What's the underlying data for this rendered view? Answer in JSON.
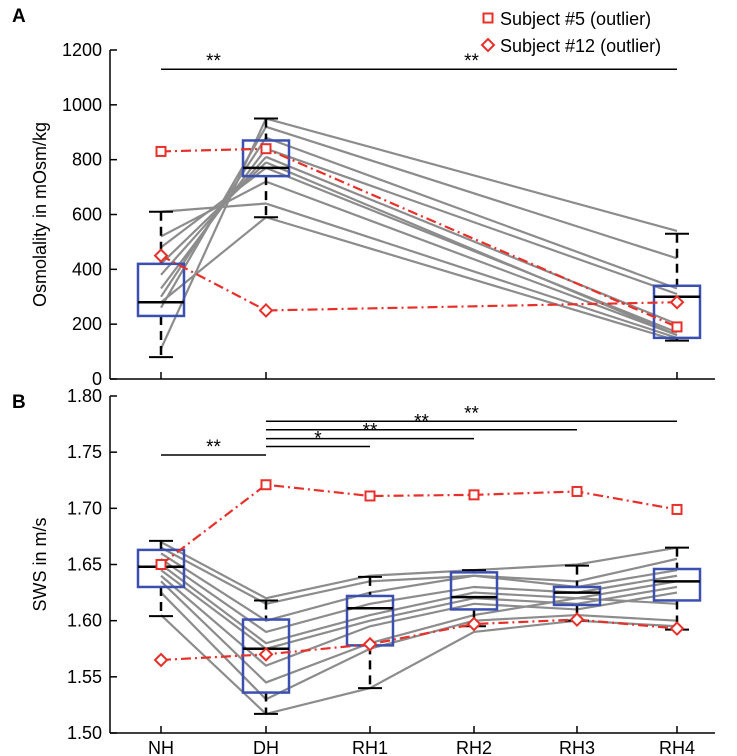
{
  "legend": {
    "position": "top-right",
    "items": [
      {
        "label": "Subject #5   (outlier)",
        "marker": "square",
        "color": "#e8302a"
      },
      {
        "label": "Subject #12 (outlier)",
        "marker": "diamond",
        "color": "#e8302a"
      }
    ]
  },
  "colors": {
    "subject_line": "#8c8c8c",
    "outlier": "#e8302a",
    "box": "#3a4fb0",
    "median": "#000000",
    "whisker": "#000000"
  },
  "chart_data": [
    {
      "panel": "A",
      "type": "line",
      "ylabel": "Osmolality in mOsm/kg",
      "ylim": [
        0,
        1200
      ],
      "yticks": [
        0,
        200,
        400,
        600,
        800,
        1000,
        1200
      ],
      "x": [
        "NH",
        "DH",
        "RH4"
      ],
      "subjects": [
        [
          110,
          950
        ],
        [
          260,
          920
        ],
        [
          300,
          880
        ],
        [
          330,
          840
        ],
        [
          380,
          810
        ],
        [
          420,
          790
        ],
        [
          480,
          770
        ],
        [
          520,
          720
        ],
        [
          610,
          640
        ],
        [
          280,
          590
        ]
      ],
      "subjects_tail": [
        [
          950,
          540
        ],
        [
          920,
          440
        ],
        [
          880,
          330
        ],
        [
          840,
          310
        ],
        [
          810,
          200
        ],
        [
          790,
          160
        ],
        [
          770,
          170
        ],
        [
          720,
          160
        ],
        [
          640,
          150
        ],
        [
          590,
          140
        ]
      ],
      "outliers": [
        {
          "name": "Subject #5",
          "marker": "square",
          "values": [
            830,
            840,
            190
          ]
        },
        {
          "name": "Subject #12",
          "marker": "diamond",
          "values": [
            450,
            250,
            280
          ]
        }
      ],
      "boxes": [
        {
          "x": "NH",
          "q1": 230,
          "median": 280,
          "q3": 420,
          "whisker_low": 80,
          "whisker_high": 610
        },
        {
          "x": "DH",
          "q1": 740,
          "median": 770,
          "q3": 870,
          "whisker_low": 590,
          "whisker_high": 950
        },
        {
          "x": "RH4",
          "q1": 150,
          "median": 300,
          "q3": 340,
          "whisker_low": 140,
          "whisker_high": 530
        }
      ],
      "significance": [
        {
          "from": "NH",
          "to": "DH",
          "label": "**",
          "y": 1130
        },
        {
          "from": "DH",
          "to": "RH4",
          "label": "**",
          "y": 1130
        }
      ]
    },
    {
      "panel": "B",
      "type": "line",
      "ylabel": "SWS in m/s",
      "ylim": [
        1.5,
        1.8
      ],
      "yticks": [
        "1.50",
        "1.55",
        "1.60",
        "1.65",
        "1.70",
        "1.75",
        "1.80"
      ],
      "x": [
        "NH",
        "DH",
        "RH1",
        "RH2",
        "RH3",
        "RH4"
      ],
      "subjects": [
        [
          1.67,
          1.62,
          1.64,
          1.645,
          1.65,
          1.665
        ],
        [
          1.665,
          1.615,
          1.635,
          1.64,
          1.635,
          1.655
        ],
        [
          1.66,
          1.6,
          1.625,
          1.64,
          1.63,
          1.645
        ],
        [
          1.655,
          1.59,
          1.615,
          1.63,
          1.625,
          1.64
        ],
        [
          1.65,
          1.58,
          1.605,
          1.625,
          1.62,
          1.635
        ],
        [
          1.645,
          1.575,
          1.6,
          1.62,
          1.615,
          1.63
        ],
        [
          1.64,
          1.56,
          1.595,
          1.615,
          1.61,
          1.625
        ],
        [
          1.635,
          1.545,
          1.58,
          1.605,
          1.62,
          1.615
        ],
        [
          1.625,
          1.53,
          1.575,
          1.6,
          1.605,
          1.6
        ],
        [
          1.605,
          1.517,
          1.54,
          1.59,
          1.6,
          1.595
        ]
      ],
      "outliers": [
        {
          "name": "Subject #5",
          "marker": "square",
          "values": [
            1.65,
            1.721,
            1.711,
            1.712,
            1.715,
            1.699
          ]
        },
        {
          "name": "Subject #12",
          "marker": "diamond",
          "values": [
            1.565,
            1.57,
            1.579,
            1.597,
            1.601,
            1.593
          ]
        }
      ],
      "boxes": [
        {
          "x": "NH",
          "q1": 1.63,
          "median": 1.648,
          "q3": 1.663,
          "whisker_low": 1.604,
          "whisker_high": 1.671
        },
        {
          "x": "DH",
          "q1": 1.536,
          "median": 1.575,
          "q3": 1.601,
          "whisker_low": 1.517,
          "whisker_high": 1.618
        },
        {
          "x": "RH1",
          "q1": 1.578,
          "median": 1.611,
          "q3": 1.622,
          "whisker_low": 1.54,
          "whisker_high": 1.639
        },
        {
          "x": "RH2",
          "q1": 1.61,
          "median": 1.621,
          "q3": 1.643,
          "whisker_low": 1.595,
          "whisker_high": 1.645
        },
        {
          "x": "RH3",
          "q1": 1.614,
          "median": 1.625,
          "q3": 1.63,
          "whisker_low": 1.6,
          "whisker_high": 1.649
        },
        {
          "x": "RH4",
          "q1": 1.618,
          "median": 1.635,
          "q3": 1.646,
          "whisker_low": 1.592,
          "whisker_high": 1.665
        }
      ],
      "significance": [
        {
          "from": "NH",
          "to": "DH",
          "label": "**",
          "y": 1.7475
        },
        {
          "from": "DH",
          "to": "RH1",
          "label": "*",
          "y": 1.755
        },
        {
          "from": "DH",
          "to": "RH2",
          "label": "**",
          "y": 1.762
        },
        {
          "from": "DH",
          "to": "RH3",
          "label": "**",
          "y": 1.77
        },
        {
          "from": "DH",
          "to": "RH4",
          "label": "**",
          "y": 1.7775
        }
      ]
    }
  ]
}
